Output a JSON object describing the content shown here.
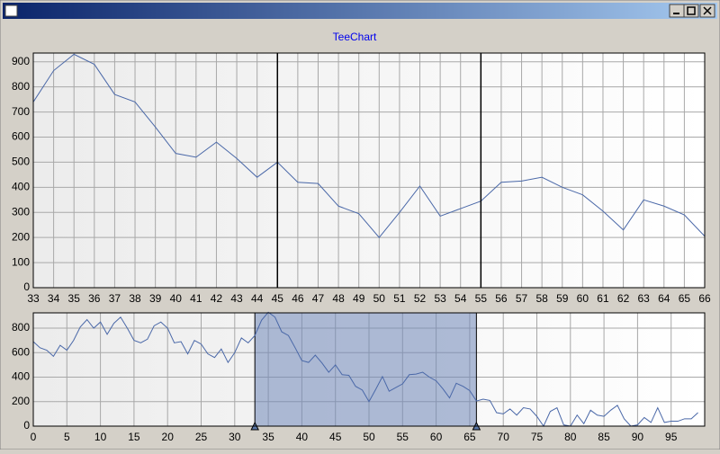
{
  "chart_data": [
    {
      "type": "line",
      "title": "TeeChart",
      "color": "#4a68a8",
      "x": [
        33,
        34,
        35,
        36,
        37,
        38,
        39,
        40,
        41,
        42,
        43,
        44,
        45,
        46,
        47,
        48,
        49,
        50,
        51,
        52,
        53,
        54,
        55,
        56,
        57,
        58,
        59,
        60,
        61,
        62,
        63,
        64,
        65,
        66
      ],
      "values": [
        740,
        865,
        930,
        890,
        770,
        740,
        640,
        535,
        520,
        580,
        515,
        440,
        500,
        420,
        415,
        325,
        295,
        200,
        300,
        405,
        285,
        315,
        345,
        420,
        425,
        440,
        400,
        370,
        305,
        230,
        350,
        325,
        290,
        205
      ],
      "xlim": [
        33,
        66
      ],
      "xticks": [
        33,
        34,
        35,
        36,
        37,
        38,
        39,
        40,
        41,
        42,
        43,
        44,
        45,
        46,
        47,
        48,
        49,
        50,
        51,
        52,
        53,
        54,
        55,
        56,
        57,
        58,
        59,
        60,
        61,
        62,
        63,
        64,
        65,
        66
      ],
      "ylim": [
        0,
        935
      ],
      "yticks": [
        0,
        100,
        200,
        300,
        400,
        500,
        600,
        700,
        800,
        900
      ],
      "grid": true,
      "markers": [
        45,
        55
      ]
    },
    {
      "type": "line",
      "color": "#4a68a8",
      "x": [
        0,
        1,
        2,
        3,
        4,
        5,
        6,
        7,
        8,
        9,
        10,
        11,
        12,
        13,
        14,
        15,
        16,
        17,
        18,
        19,
        20,
        21,
        22,
        23,
        24,
        25,
        26,
        27,
        28,
        29,
        30,
        31,
        32,
        33,
        34,
        35,
        36,
        37,
        38,
        39,
        40,
        41,
        42,
        43,
        44,
        45,
        46,
        47,
        48,
        49,
        50,
        51,
        52,
        53,
        54,
        55,
        56,
        57,
        58,
        59,
        60,
        61,
        62,
        63,
        64,
        65,
        66,
        67,
        68,
        69,
        70,
        71,
        72,
        73,
        74,
        75,
        76,
        77,
        78,
        79,
        80,
        81,
        82,
        83,
        84,
        85,
        86,
        87,
        88,
        89,
        90,
        91,
        92,
        93,
        94,
        95,
        96,
        97,
        98,
        99
      ],
      "values": [
        690,
        640,
        620,
        570,
        660,
        620,
        700,
        810,
        870,
        800,
        850,
        750,
        840,
        890,
        800,
        700,
        680,
        710,
        820,
        850,
        800,
        680,
        690,
        590,
        700,
        670,
        590,
        560,
        630,
        520,
        600,
        720,
        680,
        740,
        865,
        930,
        890,
        770,
        740,
        640,
        535,
        520,
        580,
        515,
        440,
        500,
        420,
        415,
        325,
        295,
        200,
        300,
        405,
        285,
        315,
        345,
        420,
        425,
        440,
        400,
        370,
        305,
        230,
        350,
        325,
        290,
        205,
        220,
        210,
        110,
        100,
        140,
        90,
        150,
        140,
        80,
        0,
        120,
        150,
        10,
        0,
        90,
        20,
        130,
        90,
        80,
        130,
        170,
        60,
        0,
        10,
        70,
        30,
        150,
        30,
        40,
        40,
        60,
        60,
        110
      ],
      "xlim": [
        0,
        100
      ],
      "xticks": [
        0,
        5,
        10,
        15,
        20,
        25,
        30,
        35,
        40,
        45,
        50,
        55,
        60,
        65,
        70,
        75,
        80,
        85,
        90,
        95
      ],
      "ylim": [
        0,
        925
      ],
      "yticks": [
        0,
        200,
        400,
        600,
        800
      ],
      "grid": true,
      "selection": [
        33,
        66
      ]
    }
  ]
}
